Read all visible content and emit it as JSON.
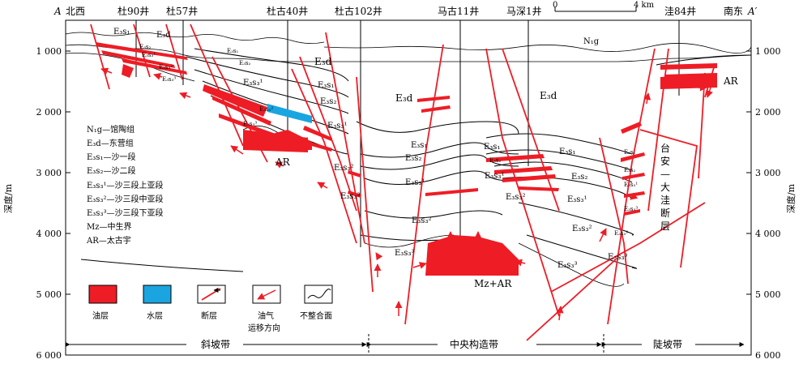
{
  "section": {
    "end_left": "A",
    "end_left_dir": "北西",
    "end_right_dir": "南东",
    "end_right": "A′"
  },
  "wells": [
    "杜90井",
    "杜57井",
    "杜古40井",
    "杜古102井",
    "马古11井",
    "马深1井",
    "洼84井"
  ],
  "scale_bar": {
    "start": "0",
    "end": "4 km"
  },
  "depth_axis": {
    "label": "深度/m",
    "ticks": [
      "1 000",
      "2 000",
      "3 000",
      "4 000",
      "5 000",
      "6 000"
    ]
  },
  "layers": {
    "n1g": "N₁g",
    "e3d": "E₃d",
    "e3s1": "E₃s₁",
    "e3s2": "E₃s₂",
    "e3s3_1": "E₃s₃¹",
    "e3s3_2": "E₃s₃²",
    "e3s3_3": "E₃s₃³",
    "ar": "AR",
    "mzar": "Mz+AR"
  },
  "fault_name": [
    "台",
    "安",
    "—",
    "大",
    "洼",
    "断",
    "层"
  ],
  "legend_text": [
    "N₁g—馆陶组",
    "E₃d—东营组",
    "E₃s₁—沙一段",
    "E₃s₂—沙二段",
    "E₃s₃¹—沙三段上亚段",
    "E₃s₃²—沙三段中亚段",
    "E₃s₃³—沙三段下亚段",
    "Mz—中生界",
    "AR—太古宇"
  ],
  "symbols": [
    {
      "label": "油层",
      "color": "#ee1c25"
    },
    {
      "label": "水层",
      "color": "#1aa5e0"
    },
    {
      "label": "断层",
      "color": ""
    },
    {
      "label": "油气\n运移方向",
      "color": ""
    },
    {
      "label": "不整合面",
      "color": ""
    }
  ],
  "zones": [
    "斜坡带",
    "中央构造带",
    "陡坡带"
  ],
  "colors": {
    "oil": "#ee1c25",
    "water": "#1aa5e0",
    "line": "#000000"
  }
}
